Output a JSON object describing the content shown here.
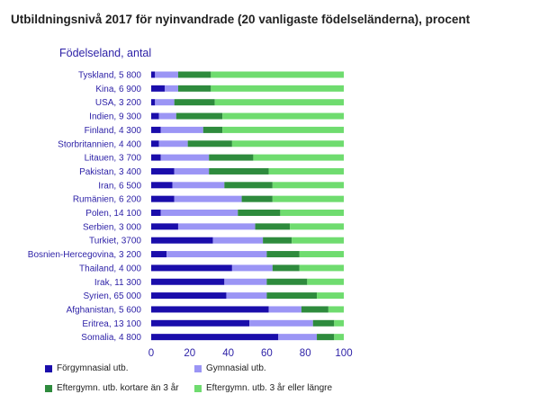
{
  "title": "Utbildningsnivå 2017 för nyinvandrade (20 vanligaste födelseländerna), procent",
  "chart_data": {
    "type": "bar",
    "orientation": "horizontal",
    "stacked": true,
    "ylabel": "Födelseland, antal",
    "xlim": [
      0,
      100
    ],
    "xticks": [
      0,
      20,
      40,
      60,
      80,
      100
    ],
    "grid": false,
    "legend_position": "bottom",
    "categories": [
      "Tyskland, 5 800",
      "Kina, 6 900",
      "USA, 3 200",
      "Indien, 9 300",
      "Finland, 4 300",
      "Storbritannien, 4 400",
      "Litauen, 3 700",
      "Pakistan, 3 400",
      "Iran, 6 500",
      "Rumänien, 6 200",
      "Polen, 14 100",
      "Serbien, 3 000",
      "Turkiet, 3700",
      "Bosnien-Hercegovina, 3 200",
      "Thailand, 4 000",
      "Irak, 11 300",
      "Syrien, 65 000",
      "Afghanistan, 5 600",
      "Eritrea, 13 100",
      "Somalia, 4 800"
    ],
    "series": [
      {
        "name": "Förgymnasial utb.",
        "color": "#1a0dab",
        "values": [
          2,
          7,
          2,
          4,
          5,
          4,
          5,
          12,
          11,
          12,
          5,
          14,
          32,
          8,
          42,
          38,
          39,
          61,
          51,
          66
        ]
      },
      {
        "name": "Gymnasial utb.",
        "color": "#9b95f5",
        "values": [
          12,
          7,
          10,
          9,
          22,
          15,
          25,
          18,
          27,
          35,
          40,
          40,
          26,
          52,
          21,
          22,
          21,
          17,
          33,
          20
        ]
      },
      {
        "name": "Eftergymn. utb. kortare än 3 år",
        "color": "#2e8b3d",
        "values": [
          17,
          17,
          21,
          24,
          10,
          23,
          23,
          31,
          25,
          16,
          22,
          18,
          15,
          17,
          14,
          21,
          26,
          14,
          11,
          9
        ]
      },
      {
        "name": "Eftergymn. utb. 3 år eller längre",
        "color": "#6fdc6f",
        "values": [
          69,
          69,
          67,
          63,
          63,
          58,
          47,
          39,
          37,
          37,
          33,
          28,
          27,
          23,
          23,
          19,
          14,
          8,
          5,
          5
        ]
      }
    ]
  }
}
